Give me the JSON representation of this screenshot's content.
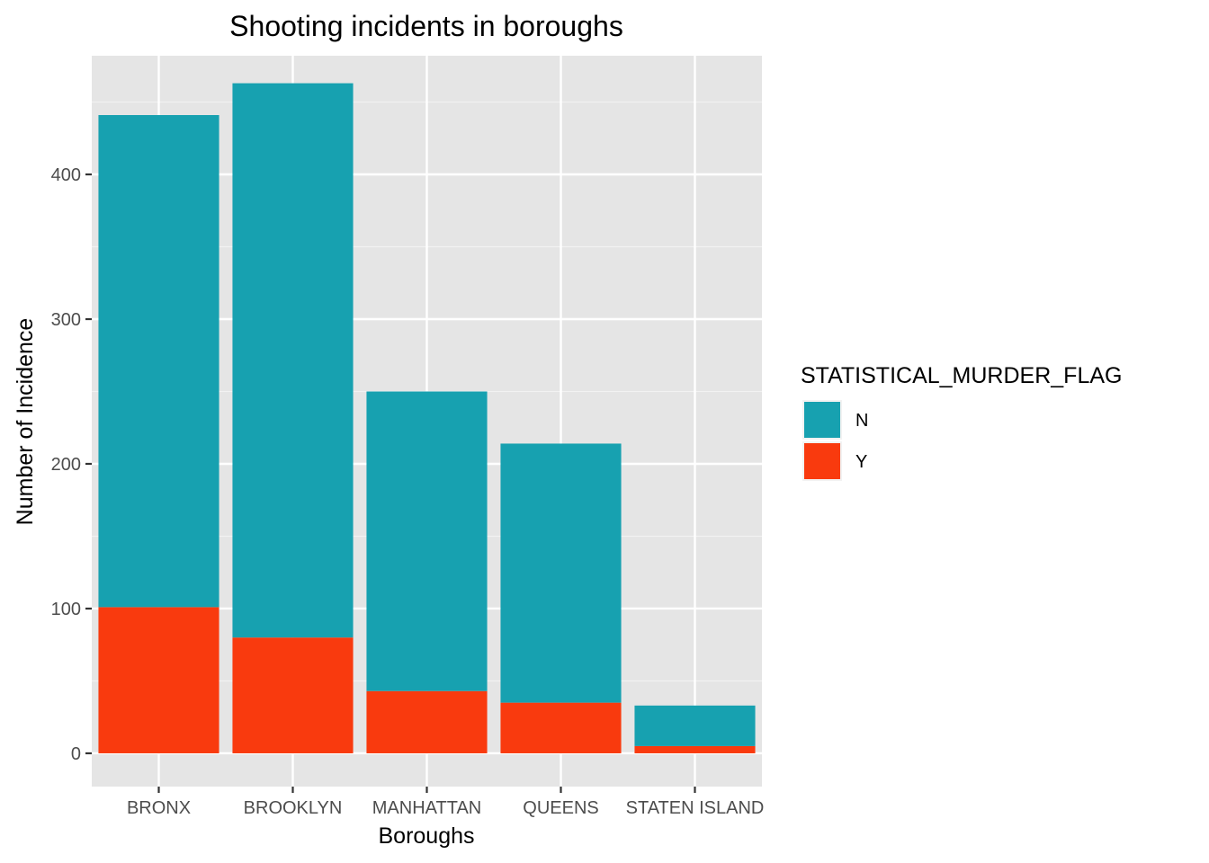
{
  "chart_data": {
    "type": "bar",
    "stacked": true,
    "title": "Shooting incidents in boroughs",
    "xlabel": "Boroughs",
    "ylabel": "Number of Incidence",
    "categories": [
      "BRONX",
      "BROOKLYN",
      "MANHATTAN",
      "QUEENS",
      "STATEN ISLAND"
    ],
    "series": [
      {
        "name": "N",
        "color": "#17A1B0",
        "values": [
          340,
          383,
          207,
          179,
          28
        ]
      },
      {
        "name": "Y",
        "color": "#F93A0E",
        "values": [
          101,
          80,
          43,
          35,
          5
        ]
      }
    ],
    "stack_order_bottom_to_top": [
      "Y",
      "N"
    ],
    "ylim": [
      -23,
      482
    ],
    "yticks": [
      0,
      100,
      200,
      300,
      400
    ],
    "ytick_labels": [
      "0",
      "100",
      "200",
      "300",
      "400"
    ],
    "grid": true,
    "legend": {
      "title": "STATISTICAL_MURDER_FLAG",
      "position": "right",
      "items": [
        "N",
        "Y"
      ]
    }
  }
}
